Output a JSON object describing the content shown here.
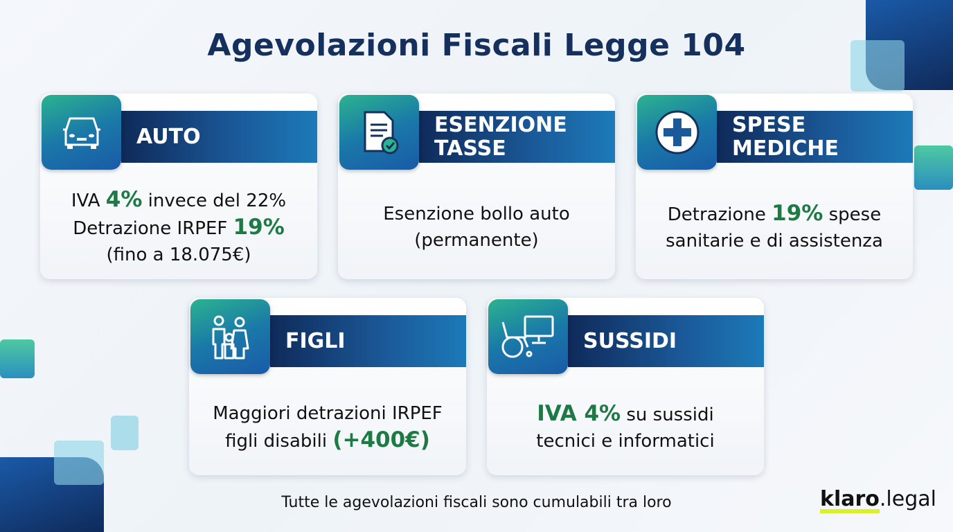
{
  "title": "Agevolazioni Fiscali Legge 104",
  "colors": {
    "navy": "#15305c",
    "accent_green": "#1e7a45",
    "logo_underline": "#d9f02a"
  },
  "cards": [
    {
      "icon": "car-icon",
      "heading": "AUTO",
      "lines": [
        [
          "IVA ",
          "4%",
          " invece del 22%"
        ],
        [
          "Detrazione IRPEF ",
          "19%",
          ""
        ],
        [
          "(fino a 18.075€)",
          "",
          ""
        ]
      ]
    },
    {
      "icon": "document-check-icon",
      "heading": "ESENZIONE TASSE",
      "lines": [
        [
          "Esenzione bollo auto",
          "",
          ""
        ],
        [
          "(permanente)",
          "",
          ""
        ]
      ]
    },
    {
      "icon": "medical-cross-icon",
      "heading": "SPESE MEDICHE",
      "lines": [
        [
          "Detrazione ",
          "19%",
          " spese"
        ],
        [
          "sanitarie e di assistenza",
          "",
          ""
        ]
      ]
    },
    {
      "icon": "family-icon",
      "heading": "FIGLI",
      "lines": [
        [
          "Maggiori detrazioni IRPEF",
          "",
          ""
        ],
        [
          "figli disabili ",
          "(+400€)",
          ""
        ]
      ]
    },
    {
      "icon": "wheelchair-computer-icon",
      "heading": "SUSSIDI",
      "lines": [
        [
          "",
          "IVA 4%",
          " su sussidi"
        ],
        [
          "tecnici e informatici",
          "",
          ""
        ]
      ]
    }
  ],
  "footer": "Tutte le agevolazioni fiscali sono cumulabili tra loro",
  "logo": {
    "bold": "klaro",
    "light": ".legal"
  }
}
